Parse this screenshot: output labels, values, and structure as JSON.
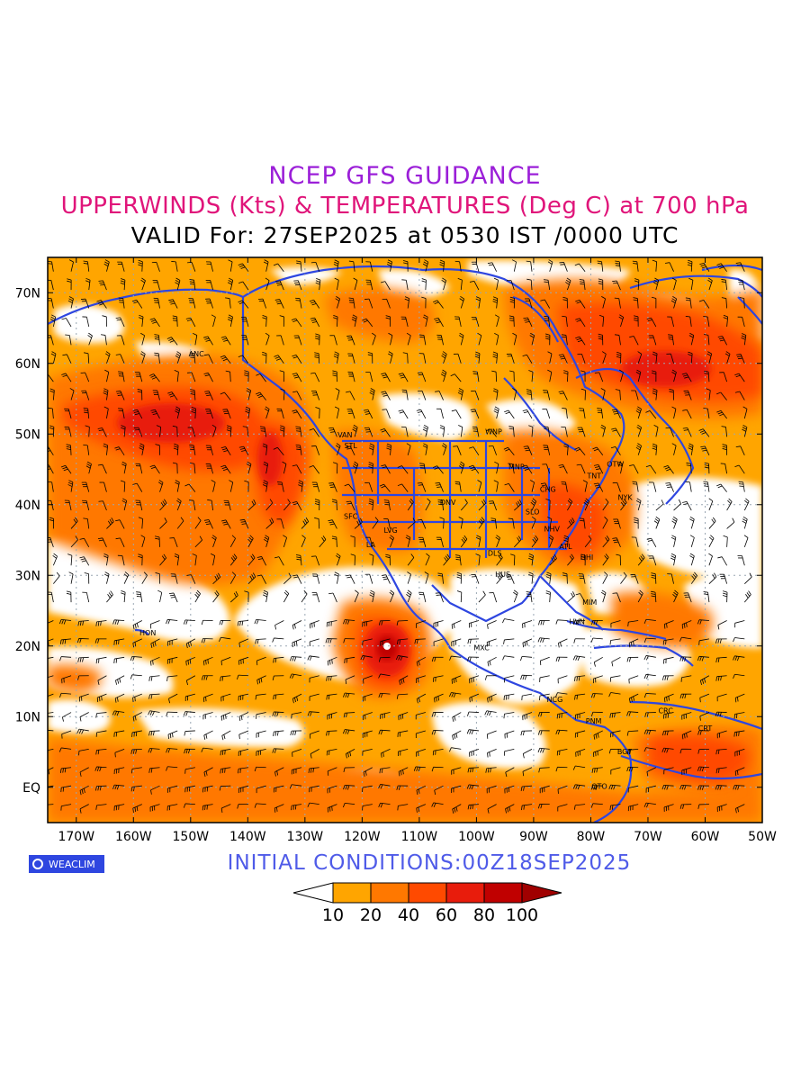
{
  "header": {
    "line1": "NCEP GFS GUIDANCE",
    "line2": "UPPERWINDS (Kts) & TEMPERATURES (Deg C) at 700 hPa",
    "line3": "VALID For: 27SEP2025 at 0530 IST /0000 UTC"
  },
  "map": {
    "lon_labels": [
      "170W",
      "160W",
      "150W",
      "140W",
      "130W",
      "120W",
      "110W",
      "100W",
      "90W",
      "80W",
      "70W",
      "60W",
      "50W"
    ],
    "lat_labels": [
      "70N",
      "60N",
      "50N",
      "40N",
      "30N",
      "20N",
      "10N",
      "EQ"
    ],
    "stations": [
      {
        "code": "ANC",
        "lon": -149,
        "lat": 61
      },
      {
        "code": "HON",
        "lon": -157.5,
        "lat": 21.5
      },
      {
        "code": "VAN",
        "lon": -123,
        "lat": 49.5
      },
      {
        "code": "STL",
        "lon": -122,
        "lat": 48
      },
      {
        "code": "SFC",
        "lon": -122,
        "lat": 38
      },
      {
        "code": "LA",
        "lon": -118.5,
        "lat": 34
      },
      {
        "code": "LVG",
        "lon": -115,
        "lat": 36
      },
      {
        "code": "DNV",
        "lon": -105,
        "lat": 40
      },
      {
        "code": "WNP",
        "lon": -97,
        "lat": 50
      },
      {
        "code": "MNP",
        "lon": -93,
        "lat": 45
      },
      {
        "code": "CHG",
        "lon": -87.5,
        "lat": 41.8
      },
      {
        "code": "SLO",
        "lon": -90.2,
        "lat": 38.6
      },
      {
        "code": "NHV",
        "lon": -86.8,
        "lat": 36.2
      },
      {
        "code": "DLS",
        "lon": -96.8,
        "lat": 32.8
      },
      {
        "code": "HUS",
        "lon": -95.4,
        "lat": 29.8
      },
      {
        "code": "ATL",
        "lon": -84.4,
        "lat": 33.7
      },
      {
        "code": "HHI",
        "lon": -80.7,
        "lat": 32.2
      },
      {
        "code": "TNT",
        "lon": -79.4,
        "lat": 43.7
      },
      {
        "code": "OTW",
        "lon": -75.7,
        "lat": 45.4
      },
      {
        "code": "NYK",
        "lon": -74,
        "lat": 40.7
      },
      {
        "code": "MIM",
        "lon": -80.2,
        "lat": 25.8
      },
      {
        "code": "HVN",
        "lon": -82.4,
        "lat": 23.1
      },
      {
        "code": "MXC",
        "lon": -99.1,
        "lat": 19.4
      },
      {
        "code": "NCG",
        "lon": -86.3,
        "lat": 12.1
      },
      {
        "code": "PNM",
        "lon": -79.5,
        "lat": 9
      },
      {
        "code": "BGT",
        "lon": -74.1,
        "lat": 4.7
      },
      {
        "code": "QTO",
        "lon": -78.5,
        "lat": -0.2
      },
      {
        "code": "CRC",
        "lon": -66.9,
        "lat": 10.5
      },
      {
        "code": "CRT",
        "lon": -60,
        "lat": 8
      }
    ]
  },
  "footer": {
    "logo_text": "WEACLIM",
    "initial_conditions": "INITIAL CONDITIONS:00Z18SEP2025"
  },
  "colorbar": {
    "levels": [
      "10",
      "20",
      "40",
      "60",
      "80",
      "100"
    ],
    "colors": [
      "#ffffff",
      "#ffa500",
      "#ff7800",
      "#ff4a00",
      "#e81c0c",
      "#c00000",
      "#a00000"
    ]
  },
  "colors": {
    "coastline": "#2e46e0",
    "wind_speed_low": "#ffa500",
    "wind_speed_mid": "#ff7800",
    "wind_speed_high": "#e81c0c",
    "grid": "#9aa7b3",
    "temperature_labels": "#2e46e0"
  }
}
